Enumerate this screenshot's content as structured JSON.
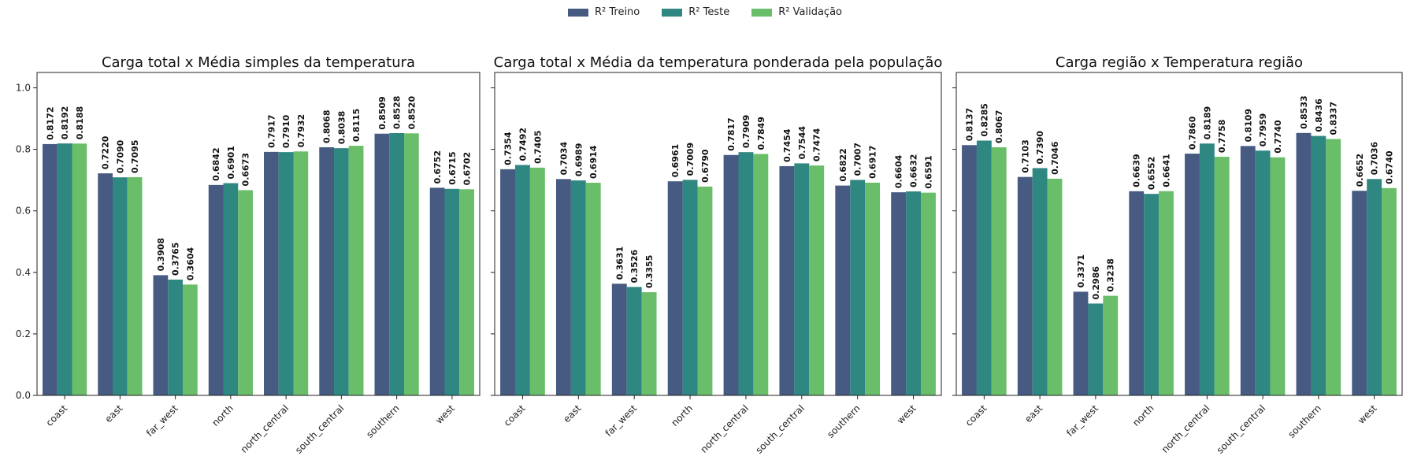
{
  "legend": [
    {
      "label": "R² Treino",
      "color": "#465a82"
    },
    {
      "label": "R² Teste",
      "color": "#2f8781"
    },
    {
      "label": "R² Validação",
      "color": "#6abd69"
    }
  ],
  "chart_data": [
    {
      "type": "bar",
      "title": "Carga total x Média simples da temperatura",
      "categories": [
        "coast",
        "east",
        "far_west",
        "north",
        "north_central",
        "south_central",
        "southern",
        "west"
      ],
      "ylim": [
        0,
        1.05
      ],
      "yticks": [
        "0.0",
        "0.2",
        "0.4",
        "0.6",
        "0.8",
        "1.0"
      ],
      "series": [
        {
          "name": "R² Treino",
          "values": [
            0.8172,
            0.722,
            0.3908,
            0.6842,
            0.7917,
            0.8068,
            0.8509,
            0.6752
          ]
        },
        {
          "name": "R² Teste",
          "values": [
            0.8192,
            0.709,
            0.3765,
            0.6901,
            0.791,
            0.8038,
            0.8528,
            0.6715
          ]
        },
        {
          "name": "R² Validação",
          "values": [
            0.8188,
            0.7095,
            0.3604,
            0.6673,
            0.7932,
            0.8115,
            0.852,
            0.6702
          ]
        }
      ]
    },
    {
      "type": "bar",
      "title": "Carga total x Média da temperatura ponderada pela população",
      "categories": [
        "coast",
        "east",
        "far_west",
        "north",
        "north_central",
        "south_central",
        "southern",
        "west"
      ],
      "ylim": [
        0,
        1.05
      ],
      "yticks": [
        "0.0",
        "0.2",
        "0.4",
        "0.6",
        "0.8",
        "1.0"
      ],
      "series": [
        {
          "name": "R² Treino",
          "values": [
            0.7354,
            0.7034,
            0.3631,
            0.6961,
            0.7817,
            0.7454,
            0.6822,
            0.6604
          ]
        },
        {
          "name": "R² Teste",
          "values": [
            0.7492,
            0.6989,
            0.3526,
            0.7009,
            0.7909,
            0.7544,
            0.7007,
            0.6632
          ]
        },
        {
          "name": "R² Validação",
          "values": [
            0.7405,
            0.6914,
            0.3355,
            0.679,
            0.7849,
            0.7474,
            0.6917,
            0.6591
          ]
        }
      ]
    },
    {
      "type": "bar",
      "title": "Carga região x Temperatura região",
      "categories": [
        "coast",
        "east",
        "far_west",
        "north",
        "north_central",
        "south_central",
        "southern",
        "west"
      ],
      "ylim": [
        0,
        1.05
      ],
      "yticks": [
        "0.0",
        "0.2",
        "0.4",
        "0.6",
        "0.8",
        "1.0"
      ],
      "series": [
        {
          "name": "R² Treino",
          "values": [
            0.8137,
            0.7103,
            0.3371,
            0.6639,
            0.786,
            0.8109,
            0.8533,
            0.6652
          ]
        },
        {
          "name": "R² Teste",
          "values": [
            0.8285,
            0.739,
            0.2986,
            0.6552,
            0.8189,
            0.7959,
            0.8436,
            0.7036
          ]
        },
        {
          "name": "R² Validação",
          "values": [
            0.8067,
            0.7046,
            0.3238,
            0.6641,
            0.7758,
            0.774,
            0.8337,
            0.674
          ]
        }
      ]
    }
  ]
}
